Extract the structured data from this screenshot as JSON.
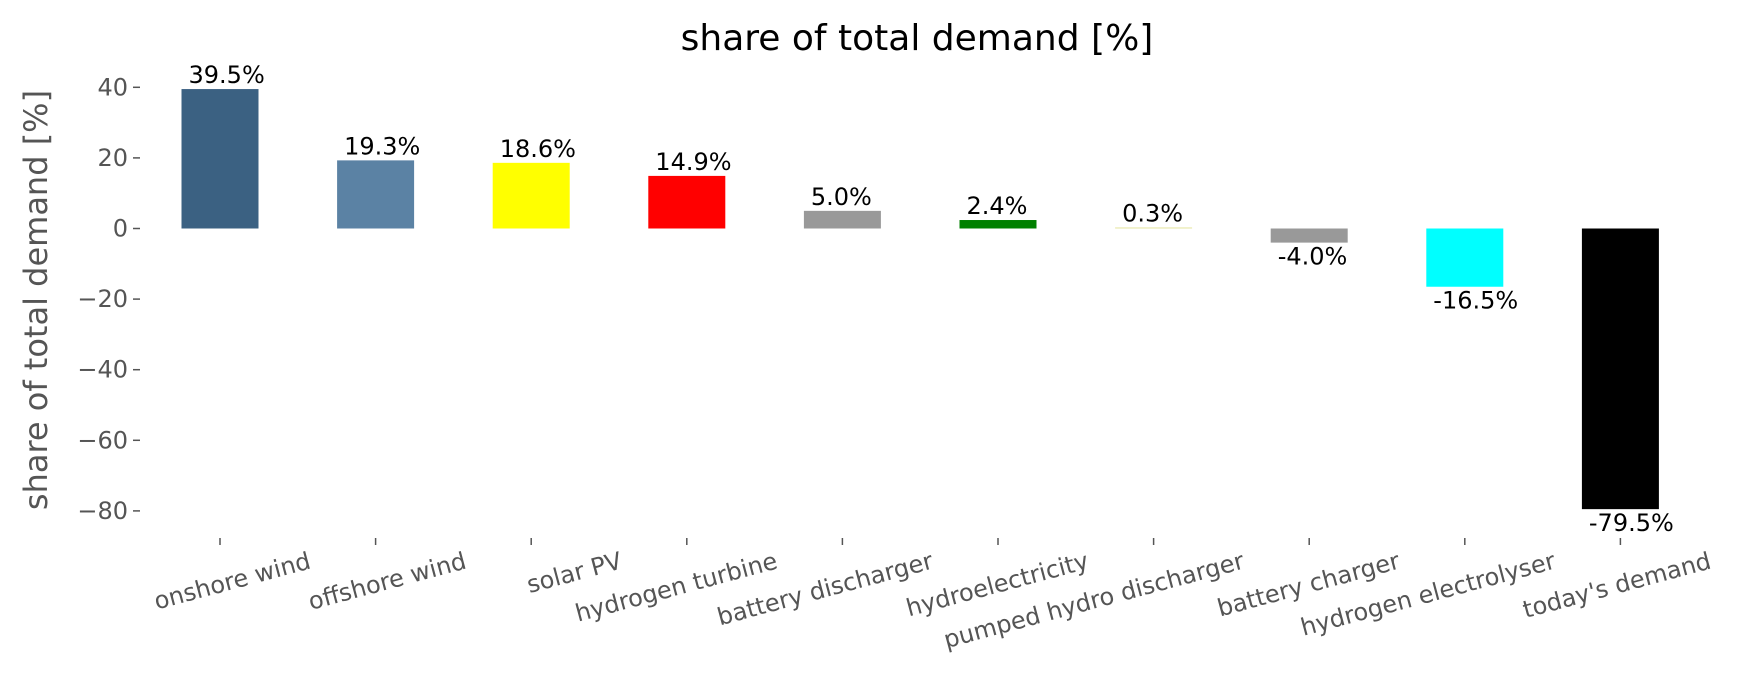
{
  "chart_data": {
    "type": "bar",
    "title": "share of total demand [%]",
    "xlabel": "",
    "ylabel": "share of total demand [%]",
    "ylim": [
      -87,
      42
    ],
    "grid": false,
    "yticks": [
      40,
      20,
      0,
      -20,
      -40,
      -60,
      -80
    ],
    "ytick_labels": [
      "40",
      "20",
      "0",
      "−20",
      "−40",
      "−60",
      "−80"
    ],
    "categories": [
      "onshore wind",
      "offshore wind",
      "solar PV",
      "hydrogen turbine",
      "battery discharger",
      "hydroelectricity",
      "pumped hydro discharger",
      "battery charger",
      "hydrogen electrolyser",
      "today's demand"
    ],
    "values": [
      39.5,
      19.3,
      18.6,
      14.9,
      5.0,
      2.4,
      0.3,
      -4.0,
      -16.5,
      -79.5
    ],
    "data_labels": [
      "39.5%",
      "19.3%",
      "18.6%",
      "14.9%",
      "5.0%",
      "2.4%",
      "0.3%",
      "-4.0%",
      "-16.5%",
      "-79.5%"
    ],
    "colors": [
      "#3b6182",
      "#5b82a4",
      "#ffff00",
      "#ff0000",
      "#999999",
      "#008000",
      "#e6e6a0",
      "#999999",
      "#00ffff",
      "#000000"
    ]
  }
}
